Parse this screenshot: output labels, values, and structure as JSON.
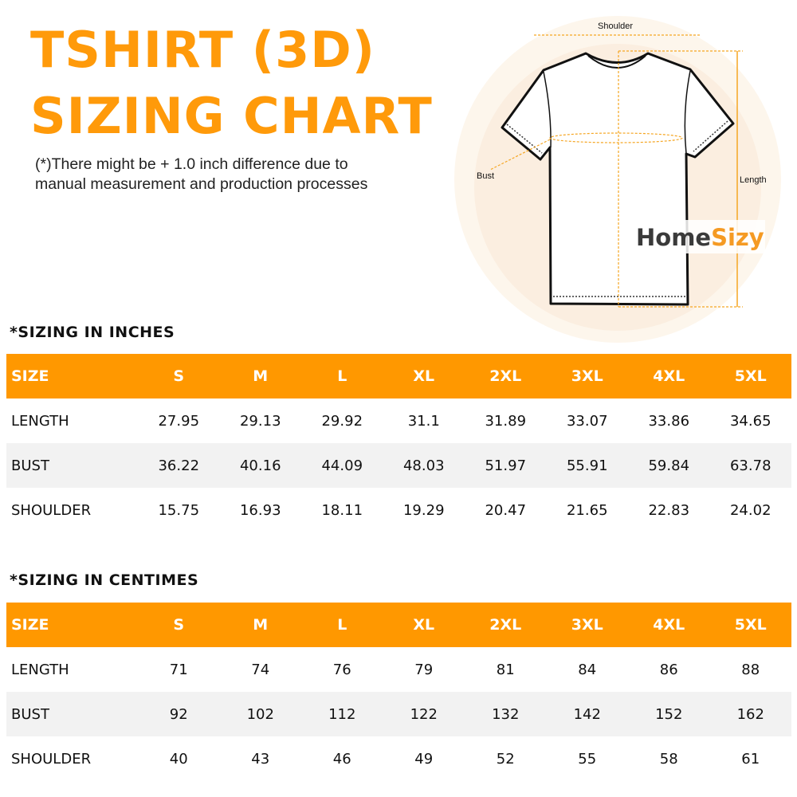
{
  "title": {
    "line1": "TSHIRT (3D)",
    "line2": "SIZING CHART"
  },
  "note": {
    "line1": "(*)There might be + 1.0 inch difference due to",
    "line2": "manual measurement and production processes"
  },
  "figure": {
    "shoulder_label": "Shoulder",
    "bust_label": "Bust",
    "length_label": "Length",
    "logo": "HomeSizy"
  },
  "colors": {
    "accent": "#ff9800",
    "row_alt": "#f2f2f2",
    "logo_dark": "#3a3a3a"
  },
  "tables": [
    {
      "title": "*SIZING IN INCHES",
      "header": [
        "SIZE",
        "S",
        "M",
        "L",
        "XL",
        "2XL",
        "3XL",
        "4XL",
        "5XL"
      ],
      "rows": [
        [
          "LENGTH",
          "27.95",
          "29.13",
          "29.92",
          "31.1",
          "31.89",
          "33.07",
          "33.86",
          "34.65"
        ],
        [
          "BUST",
          "36.22",
          "40.16",
          "44.09",
          "48.03",
          "51.97",
          "55.91",
          "59.84",
          "63.78"
        ],
        [
          "SHOULDER",
          "15.75",
          "16.93",
          "18.11",
          "19.29",
          "20.47",
          "21.65",
          "22.83",
          "24.02"
        ]
      ]
    },
    {
      "title": "*SIZING IN CENTIMES",
      "header": [
        "SIZE",
        "S",
        "M",
        "L",
        "XL",
        "2XL",
        "3XL",
        "4XL",
        "5XL"
      ],
      "rows": [
        [
          "LENGTH",
          "71",
          "74",
          "76",
          "79",
          "81",
          "84",
          "86",
          "88"
        ],
        [
          "BUST",
          "92",
          "102",
          "112",
          "122",
          "132",
          "142",
          "152",
          "162"
        ],
        [
          "SHOULDER",
          "40",
          "43",
          "46",
          "49",
          "52",
          "55",
          "58",
          "61"
        ]
      ]
    }
  ]
}
